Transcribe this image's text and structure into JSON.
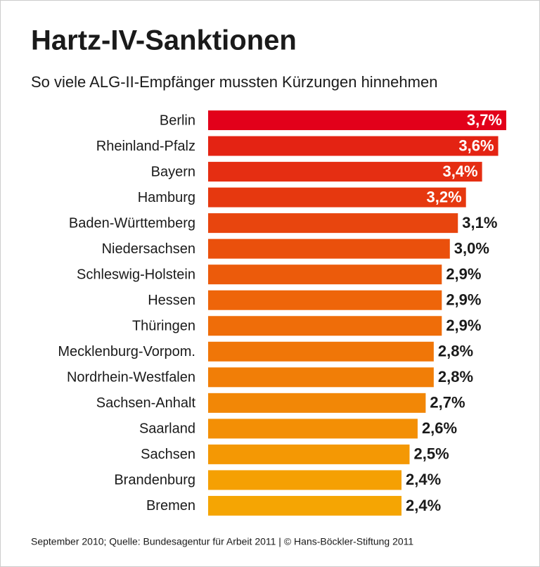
{
  "chart_data": {
    "type": "hbar",
    "title": "Hartz-IV-Sanktionen",
    "subtitle": "So viele ALG-II-Empfänger mussten Kürzungen hinnehmen",
    "categories": [
      "Berlin",
      "Rheinland-Pfalz",
      "Bayern",
      "Hamburg",
      "Baden-Württemberg",
      "Niedersachsen",
      "Schleswig-Holstein",
      "Hessen",
      "Thüringen",
      "Mecklenburg-Vorpom.",
      "Nordrhein-Westfalen",
      "Sachsen-Anhalt",
      "Saarland",
      "Sachsen",
      "Brandenburg",
      "Bremen"
    ],
    "values": [
      3.7,
      3.6,
      3.4,
      3.2,
      3.1,
      3.0,
      2.9,
      2.9,
      2.9,
      2.8,
      2.8,
      2.7,
      2.6,
      2.5,
      2.4,
      2.4
    ],
    "value_labels": [
      "3,7%",
      "3,6%",
      "3,4%",
      "3,2%",
      "3,1%",
      "3,0%",
      "2,9%",
      "2,9%",
      "2,9%",
      "2,8%",
      "2,8%",
      "2,7%",
      "2,6%",
      "2,5%",
      "2,4%",
      "2,4%"
    ],
    "colors": [
      "#e2001a",
      "#e42313",
      "#e52e12",
      "#e6380f",
      "#e8450e",
      "#ea500c",
      "#ec5b0b",
      "#ee650a",
      "#ef6d09",
      "#f07608",
      "#f17e07",
      "#f28706",
      "#f38f05",
      "#f49804",
      "#f5a003",
      "#f5a503"
    ],
    "source": "September 2010; Quelle: Bundesagentur für Arbeit 2011 | © Hans-Böckler-Stiftung 2011"
  }
}
